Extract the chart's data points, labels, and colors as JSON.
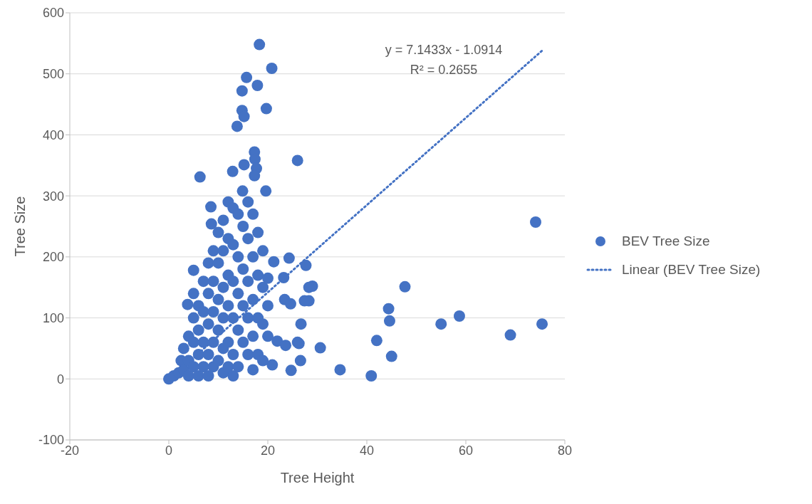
{
  "chart_data": {
    "type": "scatter",
    "xlabel": "Tree Height",
    "ylabel": "Tree Size",
    "xlim": [
      -20,
      80
    ],
    "xticks": [
      -20,
      0,
      20,
      40,
      60,
      80
    ],
    "ylim": [
      -100,
      600
    ],
    "yticks": [
      -100,
      0,
      100,
      200,
      300,
      400,
      500,
      600
    ],
    "grid": "y",
    "legend": "right",
    "marker": "circle",
    "annotations": [
      "y = 7.1433x - 1.0914",
      "R² = 0.2655"
    ],
    "series": [
      {
        "name": "BEV Tree Size",
        "color": "#4472c4",
        "x": [
          18.3,
          20.8,
          15.7,
          14.8,
          17.9,
          19.7,
          14.8,
          15.2,
          13.8,
          17.3,
          26.0,
          17.4,
          6.3,
          12.9,
          15.2,
          17.7,
          17.3,
          14.9,
          19.6,
          8.5,
          8.6,
          5.0,
          3.8,
          74.1,
          75.4,
          69.0,
          58.7,
          55.0,
          47.7,
          44.4,
          44.6,
          42.0,
          45.0,
          40.9,
          34.6,
          30.6,
          29.0,
          28.3,
          24.3,
          27.7,
          23.2,
          28.3,
          23.4,
          24.6,
          27.4,
          26.7,
          26.0,
          26.6,
          24.7,
          21.9,
          23.6,
          20.9,
          21.2,
          26.3,
          0,
          1,
          2,
          2.5,
          3,
          3,
          4,
          4,
          4,
          5,
          5,
          5,
          5,
          6,
          6,
          6,
          6,
          7,
          7,
          7,
          7,
          8,
          8,
          8,
          8,
          8,
          9,
          9,
          9,
          9,
          9,
          10,
          10,
          10,
          10,
          10,
          11,
          11,
          11,
          11,
          11,
          11,
          12,
          12,
          12,
          12,
          12,
          12,
          13,
          13,
          13,
          13,
          13,
          13,
          14,
          14,
          14,
          14,
          14,
          15,
          15,
          15,
          15,
          16,
          16,
          16,
          16,
          16,
          17,
          17,
          17,
          17,
          17,
          18,
          18,
          18,
          18,
          19,
          19,
          19,
          19,
          20,
          20,
          20
        ],
        "values": [
          548,
          509,
          494,
          472,
          481,
          443,
          440,
          430,
          414,
          372,
          358,
          360,
          331,
          340,
          351,
          345,
          333,
          308,
          308,
          282,
          254,
          178,
          122,
          257,
          90,
          72,
          103,
          90,
          151,
          115,
          95,
          63,
          37,
          5,
          15,
          51,
          152,
          128,
          198,
          186,
          166,
          150,
          130,
          123,
          128,
          90,
          60,
          30,
          14,
          62,
          55,
          23,
          192,
          58,
          0,
          5,
          10,
          30,
          50,
          15,
          70,
          30,
          5,
          100,
          60,
          20,
          140,
          120,
          80,
          40,
          5,
          160,
          110,
          60,
          20,
          190,
          140,
          90,
          40,
          5,
          210,
          160,
          110,
          60,
          20,
          240,
          190,
          130,
          80,
          30,
          260,
          210,
          150,
          100,
          50,
          10,
          290,
          230,
          170,
          120,
          60,
          20,
          280,
          220,
          160,
          100,
          40,
          5,
          270,
          200,
          140,
          80,
          20,
          250,
          180,
          120,
          60,
          290,
          230,
          160,
          100,
          40,
          270,
          200,
          130,
          70,
          15,
          240,
          170,
          100,
          40,
          210,
          150,
          90,
          30,
          165,
          120,
          70
        ]
      },
      {
        "name": "Linear (BEV Tree Size)",
        "type": "line",
        "line_style": "dotted",
        "marker": "none",
        "color": "#4472c4",
        "x": [
          0,
          75.4
        ],
        "values": [
          -1,
          538
        ]
      }
    ]
  }
}
